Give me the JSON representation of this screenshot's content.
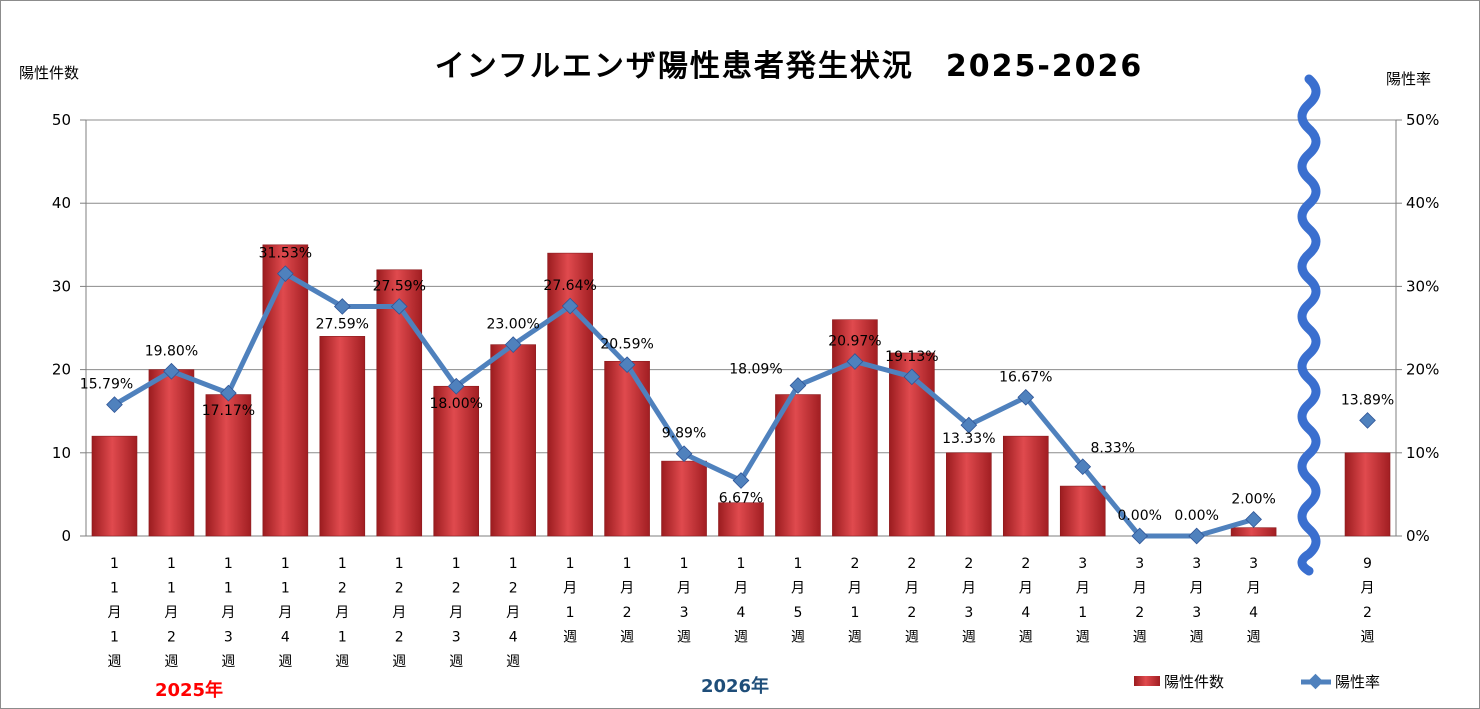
{
  "chart_data": {
    "type": "bar",
    "title": "インフルエンザ陽性患者発生状況　2025-2026",
    "ylabel": "陽性件数",
    "y2label": "陽性率",
    "ylim": [
      0,
      50
    ],
    "y2lim": [
      0,
      50
    ],
    "yticks": [
      "0",
      "10",
      "20",
      "30",
      "40",
      "50"
    ],
    "y2ticks": [
      "0%",
      "10%",
      "20%",
      "30%",
      "40%",
      "50%"
    ],
    "categories": [
      [
        "1",
        "1",
        "月",
        "1",
        "週"
      ],
      [
        "1",
        "1",
        "月",
        "2",
        "週"
      ],
      [
        "1",
        "1",
        "月",
        "3",
        "週"
      ],
      [
        "1",
        "1",
        "月",
        "4",
        "週"
      ],
      [
        "1",
        "2",
        "月",
        "1",
        "週"
      ],
      [
        "1",
        "2",
        "月",
        "2",
        "週"
      ],
      [
        "1",
        "2",
        "月",
        "3",
        "週"
      ],
      [
        "1",
        "2",
        "月",
        "4",
        "週"
      ],
      [
        "1",
        "月",
        "1",
        "週"
      ],
      [
        "1",
        "月",
        "2",
        "週"
      ],
      [
        "1",
        "月",
        "3",
        "週"
      ],
      [
        "1",
        "月",
        "4",
        "週"
      ],
      [
        "1",
        "月",
        "5",
        "週"
      ],
      [
        "2",
        "月",
        "1",
        "週"
      ],
      [
        "2",
        "月",
        "2",
        "週"
      ],
      [
        "2",
        "月",
        "3",
        "週"
      ],
      [
        "2",
        "月",
        "4",
        "週"
      ],
      [
        "3",
        "月",
        "1",
        "週"
      ],
      [
        "3",
        "月",
        "2",
        "週"
      ],
      [
        "3",
        "月",
        "3",
        "週"
      ],
      [
        "3",
        "月",
        "4",
        "週"
      ],
      [],
      [
        "9",
        "月",
        "2",
        "週"
      ]
    ],
    "series": [
      {
        "name": "陽性件数",
        "type": "bar",
        "color": "#c0282d",
        "values": [
          12,
          20,
          17,
          35,
          24,
          32,
          18,
          23,
          34,
          21,
          9,
          4,
          17,
          26,
          22,
          10,
          12,
          6,
          0,
          0,
          1,
          null,
          10
        ]
      },
      {
        "name": "陽性率",
        "type": "line",
        "color": "#4f81bd",
        "values": [
          15.79,
          19.8,
          17.17,
          31.53,
          27.59,
          27.59,
          18.0,
          23.0,
          27.64,
          20.59,
          9.89,
          6.67,
          18.09,
          20.97,
          19.13,
          13.33,
          16.67,
          8.33,
          0.0,
          0.0,
          2.0,
          null,
          13.89
        ],
        "labels": [
          "15.79%",
          "19.80%",
          "17.17%",
          "31.53%",
          "27.59%",
          "27.59%",
          "18.00%",
          "23.00%",
          "27.64%",
          "20.59%",
          "9.89%",
          "6.67%",
          "18.09%",
          "20.97%",
          "19.13%",
          "13.33%",
          "16.67%",
          "8.33%",
          "0.00%",
          "0.00%",
          "2.00%",
          null,
          "13.89%"
        ]
      }
    ],
    "year_labels": [
      {
        "text": "2025年",
        "color": "#ff0000"
      },
      {
        "text": "2026年",
        "color": "#1f4e79"
      }
    ],
    "grid": true,
    "legend": "bottom-right"
  }
}
